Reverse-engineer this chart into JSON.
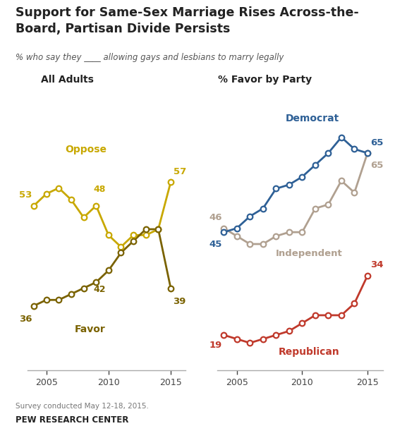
{
  "title": "Support for Same-Sex Marriage Rises Across-the-\nBoard, Partisan Divide Persists",
  "subtitle": "% who say they ____ allowing gays and lesbians to marry legally",
  "left_panel_title": "All Adults",
  "right_panel_title": "% Favor by Party",
  "footer1": "Survey conducted May 12-18, 2015.",
  "footer2": "PEW RESEARCH CENTER",
  "oppose_years": [
    2004,
    2005,
    2006,
    2007,
    2008,
    2009,
    2010,
    2011,
    2012,
    2013,
    2014,
    2015
  ],
  "oppose_values": [
    53,
    55,
    56,
    54,
    51,
    53,
    48,
    46,
    48,
    48,
    49,
    57
  ],
  "favor_years": [
    2004,
    2005,
    2006,
    2007,
    2008,
    2009,
    2010,
    2011,
    2012,
    2013,
    2014,
    2015
  ],
  "favor_values": [
    36,
    37,
    37,
    38,
    39,
    40,
    42,
    45,
    47,
    49,
    49,
    39
  ],
  "dem_years": [
    2004,
    2005,
    2006,
    2007,
    2008,
    2009,
    2010,
    2011,
    2012,
    2013,
    2014,
    2015
  ],
  "dem_values": [
    45,
    46,
    49,
    51,
    56,
    57,
    59,
    62,
    65,
    69,
    66,
    65
  ],
  "ind_years": [
    2004,
    2005,
    2006,
    2007,
    2008,
    2009,
    2010,
    2011,
    2012,
    2013,
    2014,
    2015
  ],
  "ind_values": [
    46,
    44,
    42,
    42,
    44,
    45,
    45,
    51,
    52,
    58,
    55,
    65
  ],
  "rep_years": [
    2004,
    2005,
    2006,
    2007,
    2008,
    2009,
    2010,
    2011,
    2012,
    2013,
    2014,
    2015
  ],
  "rep_values": [
    19,
    18,
    17,
    18,
    19,
    20,
    22,
    24,
    24,
    24,
    27,
    34
  ],
  "oppose_color": "#C8A800",
  "favor_color": "#7A6200",
  "dem_color": "#2E6096",
  "ind_color": "#B0A090",
  "rep_color": "#C0392B",
  "bg_color": "#FFFFFF",
  "axis_color": "#AAAAAA",
  "text_color": "#222222"
}
